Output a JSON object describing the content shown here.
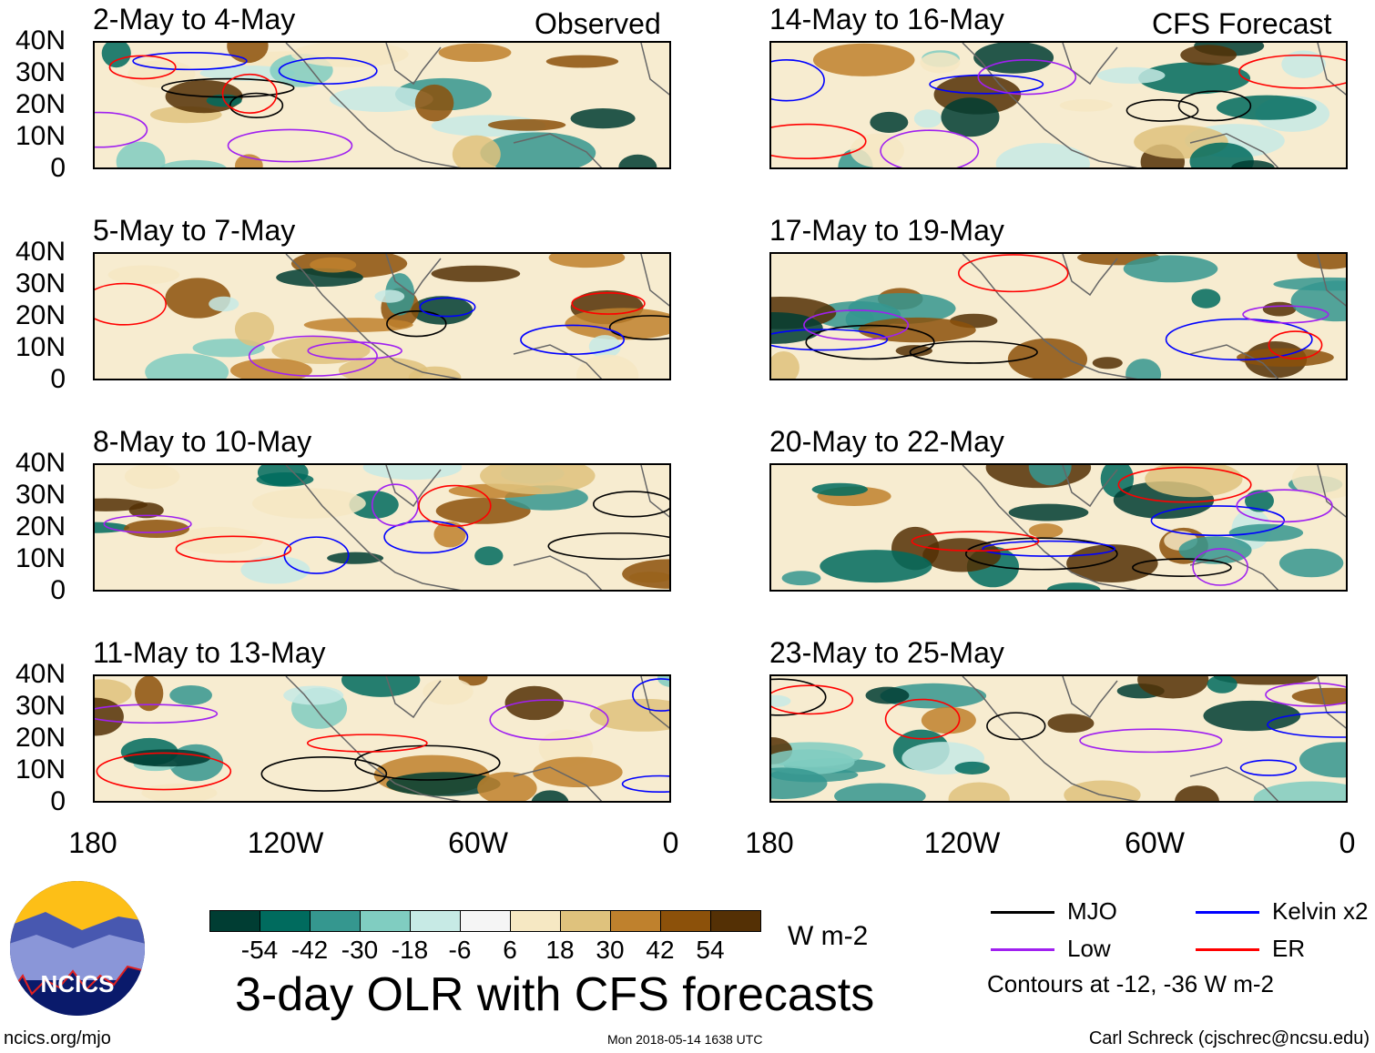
{
  "figure_title": "3-day OLR with CFS forecasts",
  "observed_label": "Observed",
  "forecast_label": "CFS Forecast",
  "panels_left": [
    {
      "title": "2-May to 4-May"
    },
    {
      "title": "5-May to 7-May"
    },
    {
      "title": "8-May to 10-May"
    },
    {
      "title": "11-May to 13-May"
    }
  ],
  "panels_right": [
    {
      "title": "14-May to 16-May"
    },
    {
      "title": "17-May to 19-May"
    },
    {
      "title": "20-May to 22-May"
    },
    {
      "title": "23-May to 25-May"
    }
  ],
  "lat_labels": [
    "40N",
    "30N",
    "20N",
    "10N",
    "0"
  ],
  "lon_labels": [
    "180",
    "120W",
    "60W",
    "0"
  ],
  "colorbar": {
    "colors": [
      "#003d33",
      "#006b5e",
      "#35978f",
      "#80cdc1",
      "#c7eae5",
      "#f5f5f5",
      "#f6e8c3",
      "#dfc27d",
      "#bf812d",
      "#8c510a",
      "#543005"
    ],
    "labels": [
      "-54",
      "-42",
      "-30",
      "-18",
      "-6",
      "6",
      "18",
      "30",
      "42",
      "54"
    ],
    "units": "W m-2"
  },
  "legend": {
    "items": [
      {
        "label": "MJO",
        "color": "#000000"
      },
      {
        "label": "Kelvin x2",
        "color": "#0000ff"
      },
      {
        "label": "Low",
        "color": "#a020f0"
      },
      {
        "label": "ER",
        "color": "#ff0000"
      }
    ],
    "note": "Contours at -12, -36 W m-2"
  },
  "logo_text": "NCICS",
  "footer": {
    "website": "ncics.org/mjo",
    "timestamp": "Mon 2018-05-14 1638 UTC",
    "author": "Carl Schreck (cjschrec@ncsu.edu)"
  }
}
